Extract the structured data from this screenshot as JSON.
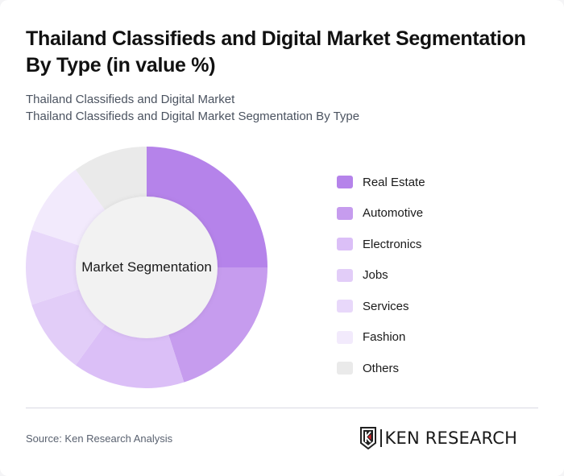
{
  "title": "Thailand Classifieds and Digital Market Segmentation By Type (in value %)",
  "subtitle_line1": "Thailand Classifieds and Digital Market",
  "subtitle_line2": "Thailand Classifieds and Digital Market Segmentation By Type",
  "center_label": "Market Segmentation",
  "source": "Source: Ken Research Analysis",
  "logo": {
    "icon": "ken-research-k-shield-icon",
    "text": "KEN RESEARCH"
  },
  "chart_data": {
    "type": "pie",
    "variant": "donut",
    "title": "Thailand Classifieds and Digital Market Segmentation By Type (in value %)",
    "center_label": "Market Segmentation",
    "categories": [
      "Real Estate",
      "Automotive",
      "Electronics",
      "Jobs",
      "Services",
      "Fashion",
      "Others"
    ],
    "values": [
      25,
      20,
      15,
      10,
      10,
      10,
      10
    ],
    "colors": [
      "#b583ea",
      "#c69cee",
      "#dbbff7",
      "#e2cdf8",
      "#e8d8fa",
      "#f2eafc",
      "#eaeaea"
    ],
    "unit": "%",
    "legend_position": "right",
    "start_angle": "12 o'clock, clockwise"
  },
  "legend": [
    {
      "label": "Real Estate",
      "color": "#b583ea"
    },
    {
      "label": "Automotive",
      "color": "#c69cee"
    },
    {
      "label": "Electronics",
      "color": "#dbbff7"
    },
    {
      "label": "Jobs",
      "color": "#e2cdf8"
    },
    {
      "label": "Services",
      "color": "#e8d8fa"
    },
    {
      "label": "Fashion",
      "color": "#f2eafc"
    },
    {
      "label": "Others",
      "color": "#eaeaea"
    }
  ]
}
